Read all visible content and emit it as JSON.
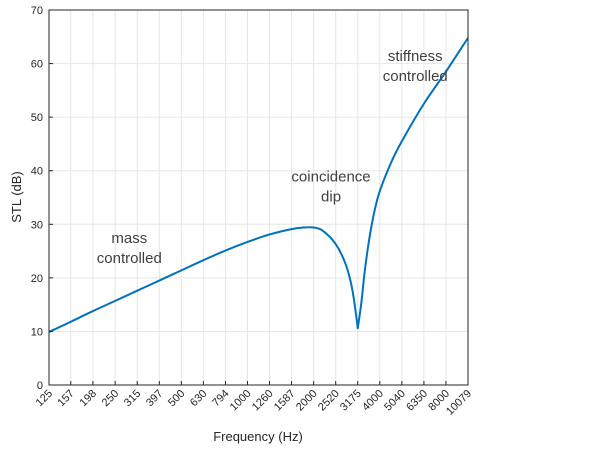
{
  "chart_data": {
    "type": "line",
    "title": "",
    "xlabel": "Frequency (Hz)",
    "ylabel": "STL (dB)",
    "x_scale": "log",
    "xlim": [
      125,
      10079
    ],
    "ylim": [
      0,
      70
    ],
    "grid": true,
    "line_color": "#0072BD",
    "x_ticks": [
      125,
      157,
      198,
      250,
      315,
      397,
      500,
      630,
      794,
      1000,
      1260,
      1587,
      2000,
      2520,
      3175,
      4000,
      5040,
      6350,
      8000,
      10079
    ],
    "y_ticks": [
      0,
      10,
      20,
      30,
      40,
      50,
      60,
      70
    ],
    "series": [
      {
        "x": [
          125,
          157,
          198,
          250,
          315,
          397,
          500,
          630,
          794,
          1000,
          1260,
          1587,
          1800,
          2000,
          2200,
          2520,
          2800,
          3000,
          3175,
          3300,
          3400,
          3500,
          3600,
          3700,
          3800,
          4000,
          4500,
          5040,
          6350,
          8000,
          10079
        ],
        "y": [
          9.9,
          11.8,
          13.8,
          15.7,
          17.6,
          19.5,
          21.4,
          23.3,
          25.1,
          26.7,
          28.1,
          29.1,
          29.4,
          29.4,
          28.8,
          26.3,
          22.5,
          17.8,
          10.6,
          15.5,
          20.5,
          24.5,
          27.8,
          30.5,
          32.8,
          36.2,
          41.5,
          45.5,
          52.5,
          58.5,
          64.8
        ]
      }
    ],
    "annotations": [
      {
        "lines": [
          "mass",
          "controlled"
        ],
        "x": 290,
        "y": 26.5
      },
      {
        "lines": [
          "coincidence",
          "dip"
        ],
        "x": 2400,
        "y": 38
      },
      {
        "lines": [
          "stiffness",
          "controlled"
        ],
        "x": 5800,
        "y": 60.5
      }
    ]
  }
}
